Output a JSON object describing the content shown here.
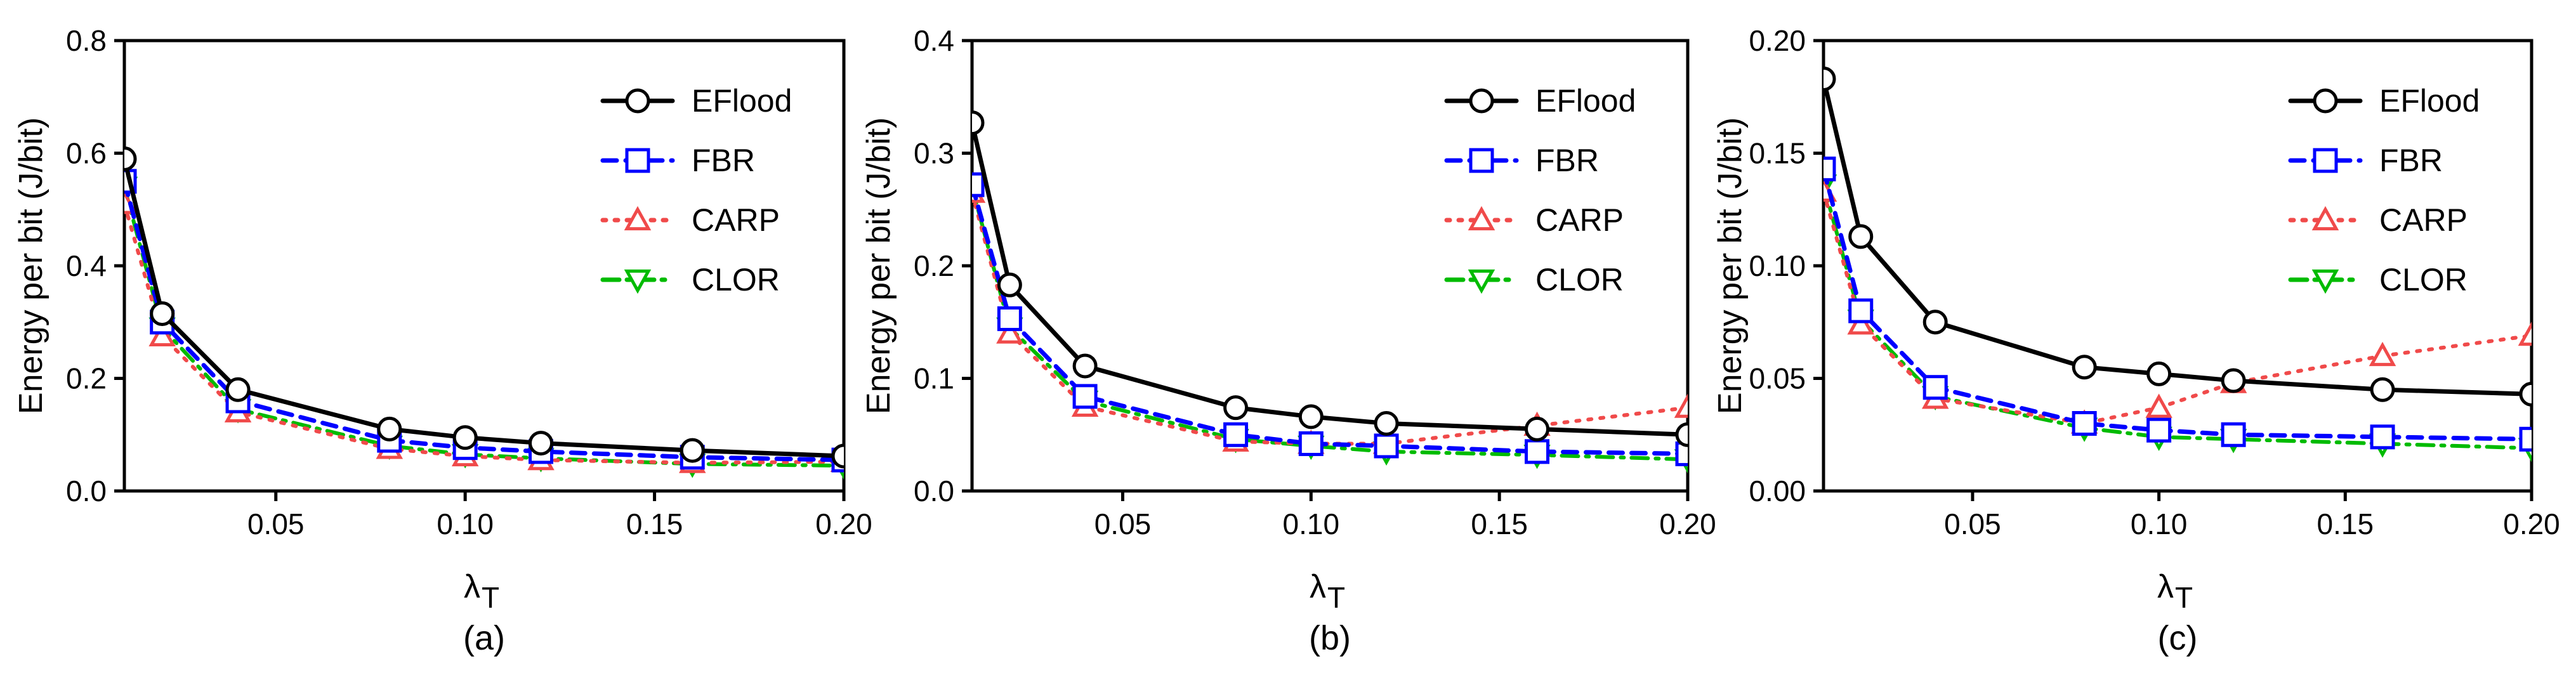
{
  "chart_data": [
    {
      "type": "line",
      "panel_label": "(a)",
      "xlabel": "λ",
      "xlabel_sub": "T",
      "ylabel": "Energy per bit (J/bit)",
      "xlim": [
        0.01,
        0.2
      ],
      "ylim": [
        0,
        0.8
      ],
      "xticks": [
        0.05,
        0.1,
        0.15,
        0.2
      ],
      "xtick_labels": [
        "0.05",
        "0.10",
        "0.15",
        "0.20"
      ],
      "yticks": [
        0,
        0.2,
        0.4,
        0.6,
        0.8
      ],
      "ytick_labels": [
        "0.0",
        "0.2",
        "0.4",
        "0.6",
        "0.8"
      ],
      "legend_position": "top-right",
      "x": [
        0.01,
        0.02,
        0.04,
        0.08,
        0.1,
        0.12,
        0.16,
        0.2
      ],
      "series": [
        {
          "name": "EFlood",
          "values": [
            0.59,
            0.315,
            0.18,
            0.11,
            0.095,
            0.085,
            0.072,
            0.062
          ]
        },
        {
          "name": "FBR",
          "values": [
            0.55,
            0.3,
            0.16,
            0.09,
            0.077,
            0.07,
            0.06,
            0.055
          ]
        },
        {
          "name": "CARP",
          "values": [
            0.51,
            0.275,
            0.14,
            0.075,
            0.062,
            0.055,
            0.05,
            0.052
          ]
        },
        {
          "name": "CLOR",
          "values": [
            0.54,
            0.29,
            0.145,
            0.08,
            0.065,
            0.058,
            0.048,
            0.045
          ]
        }
      ]
    },
    {
      "type": "line",
      "panel_label": "(b)",
      "xlabel": "λ",
      "xlabel_sub": "T",
      "ylabel": "Energy per bit (J/bit)",
      "xlim": [
        0.01,
        0.2
      ],
      "ylim": [
        0,
        0.4
      ],
      "xticks": [
        0.05,
        0.1,
        0.15,
        0.2
      ],
      "xtick_labels": [
        "0.05",
        "0.10",
        "0.15",
        "0.20"
      ],
      "yticks": [
        0,
        0.1,
        0.2,
        0.3,
        0.4
      ],
      "ytick_labels": [
        "0.0",
        "0.1",
        "0.2",
        "0.3",
        "0.4"
      ],
      "legend_position": "top-right",
      "x": [
        0.01,
        0.02,
        0.04,
        0.08,
        0.1,
        0.12,
        0.16,
        0.2
      ],
      "series": [
        {
          "name": "EFlood",
          "values": [
            0.327,
            0.183,
            0.111,
            0.074,
            0.066,
            0.06,
            0.055,
            0.05
          ]
        },
        {
          "name": "FBR",
          "values": [
            0.272,
            0.153,
            0.084,
            0.05,
            0.042,
            0.04,
            0.035,
            0.033
          ]
        },
        {
          "name": "CARP",
          "values": [
            0.265,
            0.14,
            0.075,
            0.044,
            0.042,
            0.042,
            0.058,
            0.074
          ]
        },
        {
          "name": "CLOR",
          "values": [
            0.27,
            0.145,
            0.08,
            0.046,
            0.04,
            0.035,
            0.032,
            0.028
          ]
        }
      ]
    },
    {
      "type": "line",
      "panel_label": "(c)",
      "xlabel": "λ",
      "xlabel_sub": "T",
      "ylabel": "Energy per bit (J/bit)",
      "xlim": [
        0.01,
        0.2
      ],
      "ylim": [
        0,
        0.2
      ],
      "xticks": [
        0.05,
        0.1,
        0.15,
        0.2
      ],
      "xtick_labels": [
        "0.05",
        "0.10",
        "0.15",
        "0.20"
      ],
      "yticks": [
        0,
        0.05,
        0.1,
        0.15,
        0.2
      ],
      "ytick_labels": [
        "0.00",
        "0.05",
        "0.10",
        "0.15",
        "0.20"
      ],
      "legend_position": "top-right",
      "x": [
        0.01,
        0.02,
        0.04,
        0.08,
        0.1,
        0.12,
        0.16,
        0.2
      ],
      "series": [
        {
          "name": "EFlood",
          "values": [
            0.183,
            0.113,
            0.075,
            0.055,
            0.052,
            0.049,
            0.045,
            0.043
          ]
        },
        {
          "name": "FBR",
          "values": [
            0.143,
            0.08,
            0.046,
            0.03,
            0.027,
            0.025,
            0.024,
            0.023
          ]
        },
        {
          "name": "CARP",
          "values": [
            0.133,
            0.074,
            0.041,
            0.03,
            0.037,
            0.048,
            0.06,
            0.069
          ]
        },
        {
          "name": "CLOR",
          "values": [
            0.136,
            0.076,
            0.042,
            0.028,
            0.024,
            0.023,
            0.021,
            0.019
          ]
        }
      ]
    }
  ],
  "series_styles": {
    "EFlood": {
      "color": "#000000",
      "marker": "circle",
      "dash": ""
    },
    "FBR": {
      "color": "#0000ff",
      "marker": "square",
      "dash": "22,14"
    },
    "CARP": {
      "color": "#f04a4a",
      "marker": "triangle-up",
      "dash": "5,14"
    },
    "CLOR": {
      "color": "#00bb00",
      "marker": "triangle-down",
      "dash": "26,12,5,12"
    }
  }
}
